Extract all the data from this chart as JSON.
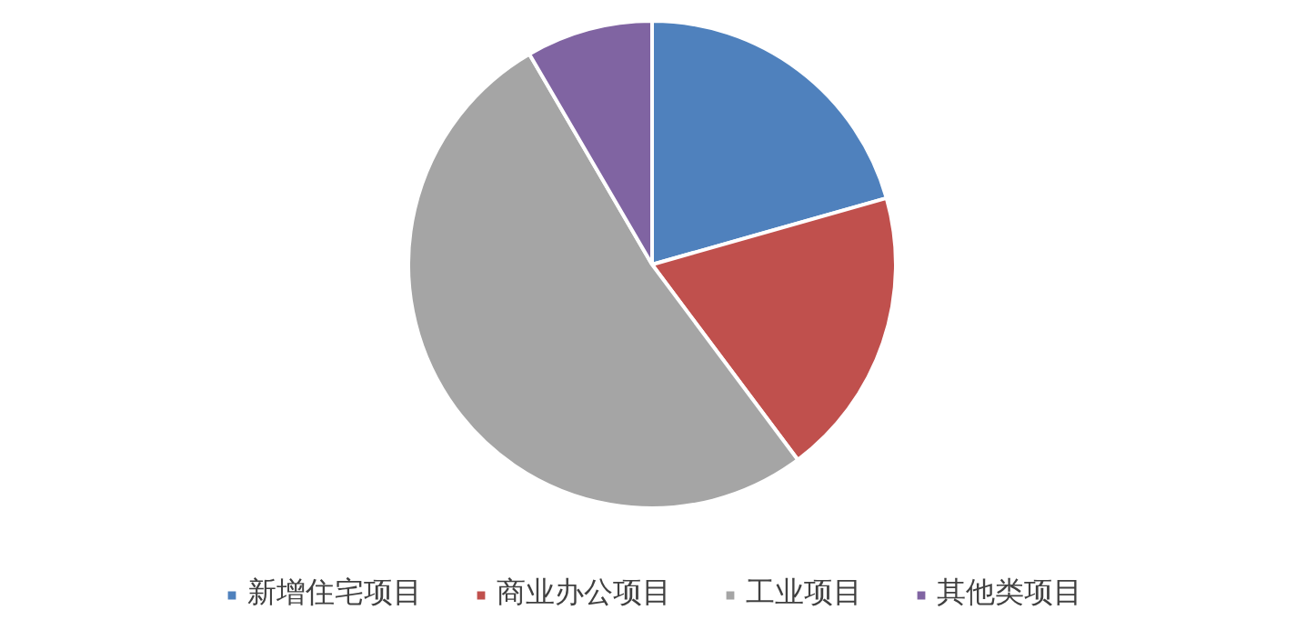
{
  "chart_data": {
    "type": "pie",
    "categories": [
      "新增住宅项目",
      "商业办公项目",
      "工业项目",
      "其他类项目"
    ],
    "values": [
      20.6,
      19.2,
      51.8,
      8.4
    ],
    "colors": [
      "#4f81bd",
      "#c0504d",
      "#a5a5a5",
      "#8064a2"
    ],
    "legend": "bottom"
  }
}
